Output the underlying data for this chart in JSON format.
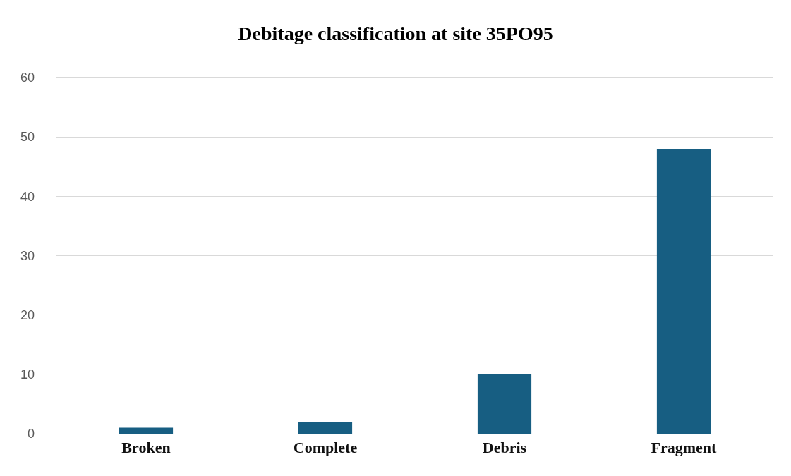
{
  "chart_data": {
    "type": "bar",
    "title": "Debitage classification at site 35PO95",
    "categories": [
      "Broken",
      "Complete",
      "Debris",
      "Fragment"
    ],
    "values": [
      1,
      2,
      10,
      48
    ],
    "color": "#175e82",
    "ylim": [
      0,
      60
    ],
    "yticks": [
      0,
      10,
      20,
      30,
      40,
      50,
      60
    ],
    "grid": "y"
  }
}
